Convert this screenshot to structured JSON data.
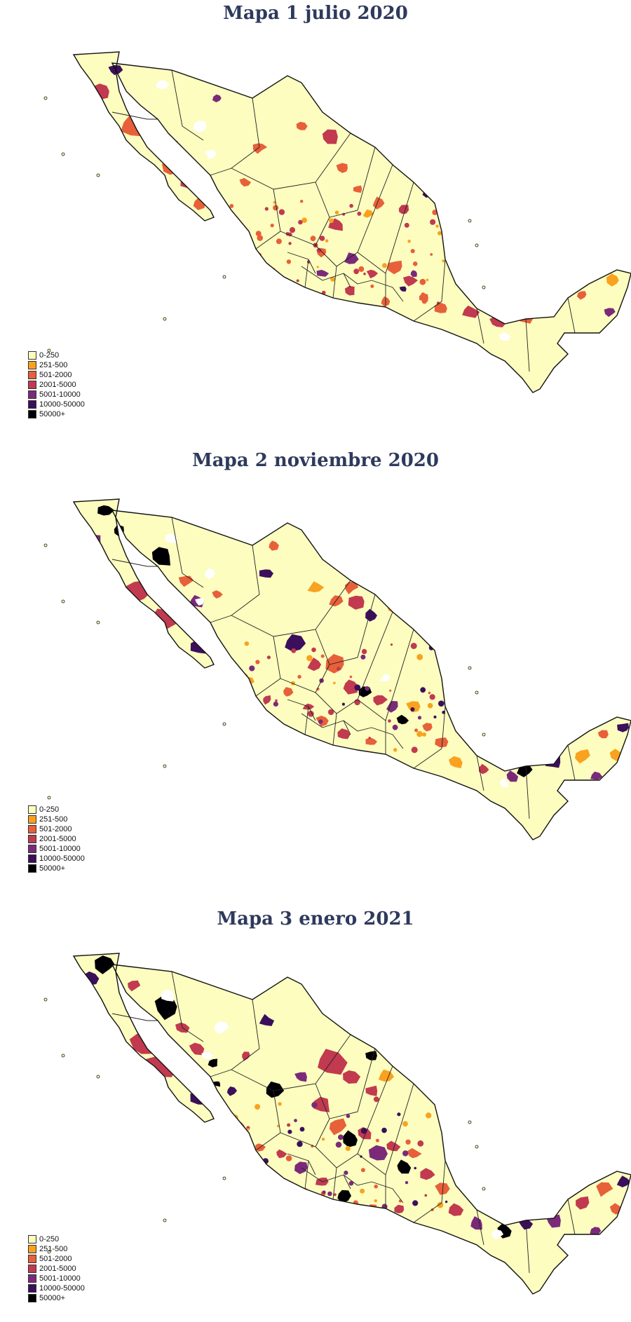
{
  "legend": {
    "items": [
      {
        "label": "0-250",
        "color": "#fcfdbf"
      },
      {
        "label": "251-500",
        "color": "#f9a21f"
      },
      {
        "label": "501-2000",
        "color": "#e7603a"
      },
      {
        "label": "2001-5000",
        "color": "#c13a4f"
      },
      {
        "label": "5001-10000",
        "color": "#7b2a7a"
      },
      {
        "label": "10000-50000",
        "color": "#3b0f5c"
      },
      {
        "label": "50000+",
        "color": "#000004"
      }
    ]
  },
  "maps": [
    {
      "title": "Mapa 1 julio 2020"
    },
    {
      "title": "Mapa 2 noviembre 2020"
    },
    {
      "title": "Mapa 3 enero 2021"
    }
  ]
}
